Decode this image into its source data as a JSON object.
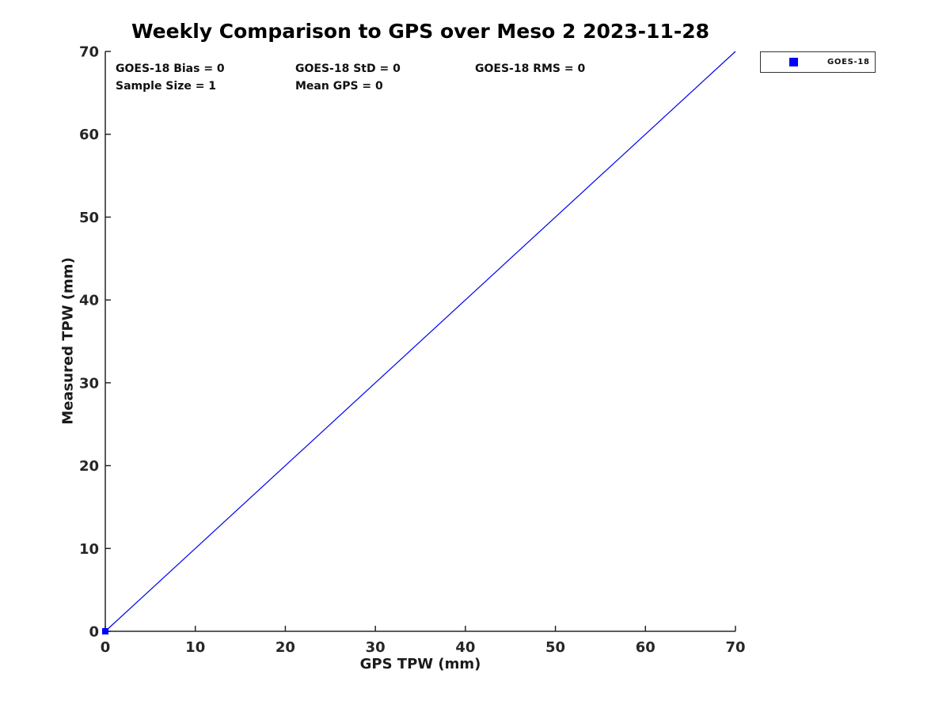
{
  "chart_data": {
    "type": "scatter",
    "title": "Weekly Comparison to GPS over Meso 2 2023-11-28",
    "xlabel": "GPS TPW (mm)",
    "ylabel": "Measured TPW (mm)",
    "xlim": [
      0,
      70
    ],
    "ylim": [
      0,
      70
    ],
    "xticks": [
      0,
      10,
      20,
      30,
      40,
      50,
      60,
      70
    ],
    "yticks": [
      0,
      10,
      20,
      30,
      40,
      50,
      60,
      70
    ],
    "grid": false,
    "legend_position": "outside-top-right",
    "legend": [
      {
        "label": "GOES-18",
        "marker": "square",
        "color": "#0000ff"
      }
    ],
    "series": [
      {
        "name": "diagonal-line",
        "type": "line",
        "color": "#0000ee",
        "points": [
          [
            0,
            0
          ],
          [
            70,
            70
          ]
        ]
      },
      {
        "name": "GOES-18",
        "type": "scatter",
        "marker": "square",
        "color": "#0000ff",
        "points": [
          [
            0,
            0
          ]
        ]
      }
    ],
    "annotations": {
      "bias": "GOES-18 Bias = 0",
      "std": "GOES-18 StD = 0",
      "rms": "GOES-18 RMS = 0",
      "sample_size": "Sample Size = 1",
      "mean_gps": "Mean GPS = 0"
    }
  },
  "colors": {
    "axis": "#262626",
    "text": "#111111",
    "background": "#ffffff",
    "series_blue": "#0000ff"
  }
}
